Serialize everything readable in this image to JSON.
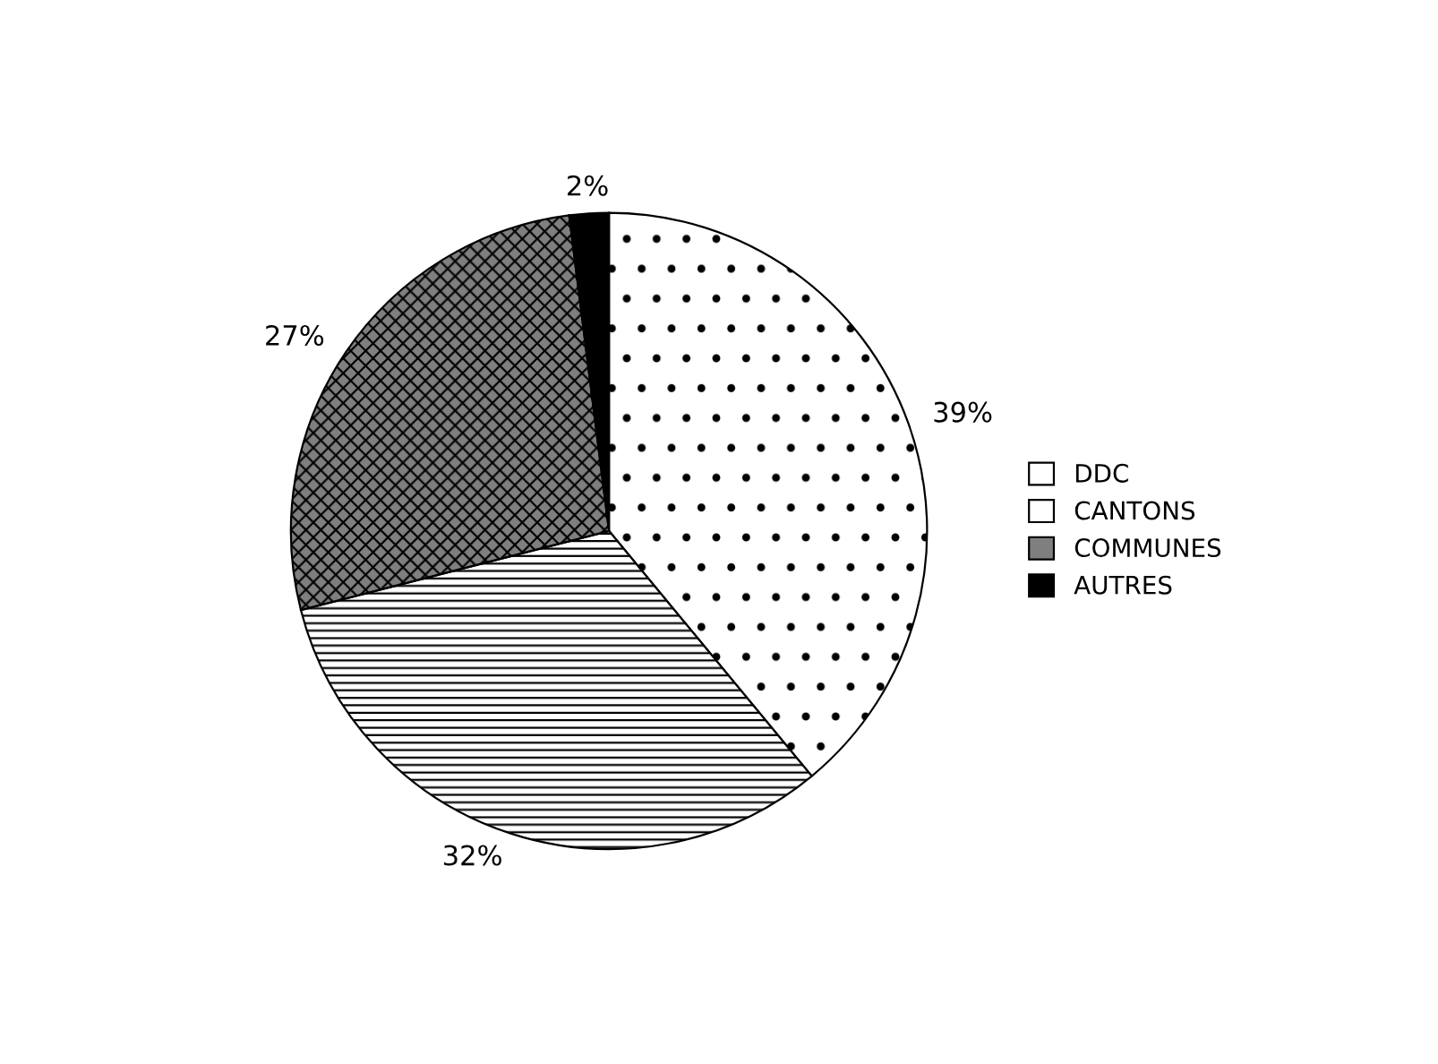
{
  "chart_data": {
    "type": "pie",
    "categories": [
      "DDC",
      "CANTONS",
      "COMMUNES",
      "AUTRES"
    ],
    "values": [
      39,
      32,
      27,
      2
    ],
    "colors": [
      "#ffffff",
      "#ffffff",
      "#7f7f7f",
      "#000000"
    ],
    "value_labels": [
      "39%",
      "32%",
      "27%",
      "2%"
    ],
    "legend": "right"
  }
}
